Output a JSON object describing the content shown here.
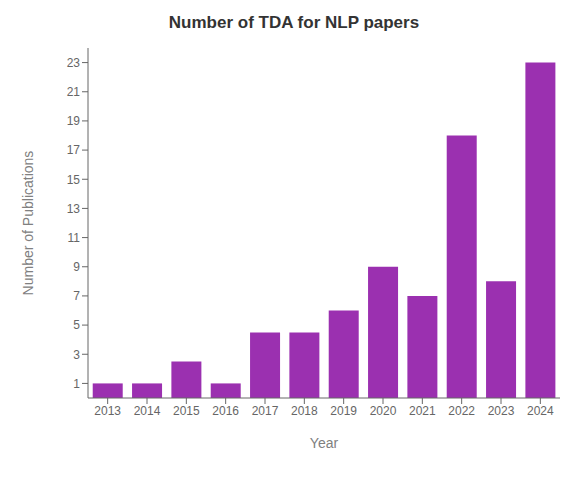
{
  "chart_data": {
    "type": "bar",
    "title": "Number of TDA for NLP papers",
    "xlabel": "Year",
    "ylabel": "Number of Publications",
    "categories": [
      "2013",
      "2014",
      "2015",
      "2016",
      "2017",
      "2018",
      "2019",
      "2020",
      "2021",
      "2022",
      "2023",
      "2024"
    ],
    "values": [
      1,
      1,
      2.5,
      1,
      4.5,
      4.5,
      6,
      9,
      7,
      18,
      8,
      23
    ],
    "color": "#9b30b0",
    "ylim": [
      0,
      24
    ],
    "yticks": [
      1,
      3,
      5,
      7,
      9,
      11,
      13,
      15,
      17,
      19,
      21,
      23
    ],
    "grid": false
  }
}
